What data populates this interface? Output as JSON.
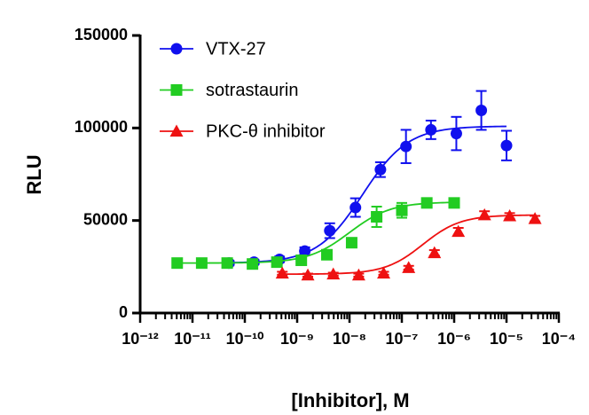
{
  "chart_data": {
    "type": "dose-response",
    "x_label": "[Inhibitor], M",
    "y_label": "RLU",
    "xscale": "log",
    "minor_ticks": true,
    "legend": "upper left",
    "xlim": [
      1e-12,
      0.0001
    ],
    "xticks": [
      {
        "value": 1e-12,
        "label": "10⁻¹²"
      },
      {
        "value": 1e-11,
        "label": "10⁻¹¹"
      },
      {
        "value": 1e-10,
        "label": "10⁻¹⁰"
      },
      {
        "value": 1e-09,
        "label": "10⁻⁹"
      },
      {
        "value": 1e-08,
        "label": "10⁻⁸"
      },
      {
        "value": 1e-07,
        "label": "10⁻⁷"
      },
      {
        "value": 1e-06,
        "label": "10⁻⁶"
      },
      {
        "value": 1e-05,
        "label": "10⁻⁵"
      },
      {
        "value": 0.0001,
        "label": "10⁻⁴"
      }
    ],
    "ylim": [
      0,
      150000
    ],
    "yticks": [
      0,
      50000,
      100000,
      150000
    ],
    "series": [
      {
        "name": "VTX-27",
        "color": "#1010ee",
        "marker": "circle",
        "x": [
          5e-11,
          1.5e-10,
          4.6e-10,
          1.4e-09,
          4.2e-09,
          1.3e-08,
          3.9e-08,
          1.2e-07,
          3.6e-07,
          1.1e-06,
          3.3e-06,
          1e-05
        ],
        "values": [
          27000,
          27500,
          29000,
          33500,
          44500,
          57000,
          77500,
          90000,
          99000,
          97000,
          109500,
          90500
        ],
        "errors": [
          1200,
          1200,
          1500,
          2000,
          4000,
          5000,
          4000,
          9000,
          5000,
          9000,
          10500,
          8000
        ],
        "fit": {
          "bottom": 27000,
          "top": 101000,
          "log_ec50": -7.75,
          "hill": 1.0
        }
      },
      {
        "name": "sotrastaurin",
        "color": "#22cc22",
        "marker": "square",
        "x": [
          5.1e-12,
          1.5e-11,
          4.6e-11,
          1.4e-10,
          4.1e-10,
          1.2e-09,
          3.7e-09,
          1.1e-08,
          3.3e-08,
          1e-07,
          3e-07,
          1e-06
        ],
        "values": [
          27000,
          27000,
          27000,
          26500,
          27500,
          28500,
          31500,
          38000,
          52000,
          55500,
          59500,
          59500
        ],
        "errors": [
          1000,
          1000,
          1000,
          1000,
          1000,
          1200,
          1500,
          2500,
          5500,
          4000,
          1500,
          1500
        ],
        "fit": {
          "bottom": 27000,
          "top": 60000,
          "log_ec50": -8.0,
          "hill": 1.1
        }
      },
      {
        "name": "PKC-θ inhibitor",
        "color": "#ee1111",
        "marker": "triangle",
        "x": [
          5.2e-10,
          1.6e-09,
          4.9e-09,
          1.5e-08,
          4.5e-08,
          1.35e-07,
          4.2e-07,
          1.2e-06,
          3.8e-06,
          1.15e-05,
          3.5e-05
        ],
        "values": [
          21500,
          20500,
          21000,
          20500,
          21500,
          24500,
          32500,
          44000,
          53000,
          52500,
          51000
        ],
        "errors": [
          800,
          800,
          800,
          800,
          800,
          1000,
          1500,
          2000,
          2000,
          1500,
          1500
        ],
        "fit": {
          "bottom": 21000,
          "top": 53000,
          "log_ec50": -6.6,
          "hill": 1.2
        }
      }
    ]
  }
}
